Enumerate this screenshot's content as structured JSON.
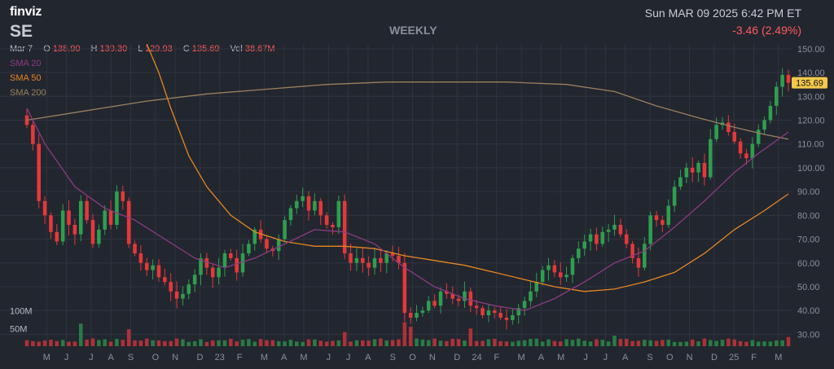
{
  "header": {
    "brand": "finviz",
    "ticker": "SE",
    "period": "WEEKLY",
    "datetime": "Sun MAR 09 2025 6:42 PM ET",
    "change": "-3.46 (2.49%)"
  },
  "ohlc": {
    "date": "Mar 7",
    "open_label": "O",
    "open": "138.90",
    "high_label": "H",
    "high": "139.30",
    "low_label": "L",
    "low": "129.93",
    "close_label": "C",
    "close": "135.69",
    "vol_label": "Vol",
    "vol": "38.67M"
  },
  "legend": {
    "sma20": "SMA 20",
    "sma50": "SMA 50",
    "sma200": "SMA 200"
  },
  "colors": {
    "background": "#22262f",
    "up": "#2e9e4f",
    "down": "#e5383b",
    "sma20": "#8e3b82",
    "sma50": "#e8861f",
    "sma200": "#9a8060",
    "price_tag": "#f2c94c",
    "grid": "#2f3440"
  },
  "chart_data": {
    "type": "candlestick",
    "ylim": [
      25,
      152
    ],
    "y_ticks": [
      "30.00",
      "40.00",
      "50.00",
      "60.00",
      "70.00",
      "80.00",
      "90.00",
      "100.00",
      "110.00",
      "120.00",
      "130.00",
      "140.00",
      "150.00"
    ],
    "y_tick_values": [
      30,
      40,
      50,
      60,
      70,
      80,
      90,
      100,
      110,
      120,
      130,
      140,
      150
    ],
    "last_price": "135.69",
    "x_ticks": [
      "M",
      "J",
      "J",
      "A",
      "S",
      "O",
      "N",
      "D",
      "23",
      "F",
      "M",
      "A",
      "M",
      "J",
      "J",
      "A",
      "S",
      "O",
      "N",
      "D",
      "24",
      "F",
      "M",
      "A",
      "M",
      "J",
      "J",
      "A",
      "S",
      "O",
      "N",
      "D",
      "25",
      "F",
      "M"
    ],
    "x_tick_week_index": [
      4,
      8,
      13,
      17,
      21,
      26,
      30,
      35,
      39,
      43,
      48,
      52,
      56,
      61,
      65,
      69,
      74,
      78,
      82,
      87,
      91,
      95,
      100,
      104,
      108,
      113,
      117,
      121,
      126,
      130,
      134,
      139,
      143,
      147,
      152
    ],
    "volume_labels": [
      "100M",
      "50M"
    ],
    "volume_label_values": [
      100,
      50
    ],
    "volume_max": 150,
    "price_anchors": [
      [
        0,
        118
      ],
      [
        1,
        110
      ],
      [
        2,
        86
      ],
      [
        3,
        80
      ],
      [
        4,
        73
      ],
      [
        5,
        69
      ],
      [
        6,
        82
      ],
      [
        7,
        76
      ],
      [
        8,
        72
      ],
      [
        9,
        86
      ],
      [
        10,
        78
      ],
      [
        11,
        68
      ],
      [
        12,
        74
      ],
      [
        13,
        82
      ],
      [
        14,
        76
      ],
      [
        15,
        90
      ],
      [
        16,
        86
      ],
      [
        17,
        68
      ],
      [
        18,
        64
      ],
      [
        19,
        60
      ],
      [
        20,
        57
      ],
      [
        21,
        59
      ],
      [
        22,
        54
      ],
      [
        23,
        52
      ],
      [
        24,
        48
      ],
      [
        25,
        45
      ],
      [
        26,
        47
      ],
      [
        27,
        51
      ],
      [
        28,
        55
      ],
      [
        29,
        62
      ],
      [
        30,
        58
      ],
      [
        31,
        54
      ],
      [
        32,
        58
      ],
      [
        33,
        64
      ],
      [
        34,
        62
      ],
      [
        35,
        56
      ],
      [
        36,
        64
      ],
      [
        37,
        68
      ],
      [
        38,
        74
      ],
      [
        39,
        70
      ],
      [
        40,
        66
      ],
      [
        41,
        65
      ],
      [
        42,
        70
      ],
      [
        43,
        78
      ],
      [
        44,
        83
      ],
      [
        45,
        86
      ],
      [
        46,
        88
      ],
      [
        47,
        82
      ],
      [
        48,
        86
      ],
      [
        49,
        80
      ],
      [
        50,
        76
      ],
      [
        51,
        75
      ],
      [
        52,
        86
      ],
      [
        53,
        64
      ],
      [
        54,
        60
      ],
      [
        55,
        62
      ],
      [
        56,
        60
      ],
      [
        57,
        58
      ],
      [
        58,
        62
      ],
      [
        59,
        60
      ],
      [
        60,
        64
      ],
      [
        61,
        63
      ],
      [
        62,
        60
      ],
      [
        63,
        39
      ],
      [
        64,
        37
      ],
      [
        65,
        39
      ],
      [
        66,
        40
      ],
      [
        67,
        44
      ],
      [
        68,
        42
      ],
      [
        69,
        48
      ],
      [
        70,
        47
      ],
      [
        71,
        45
      ],
      [
        72,
        44
      ],
      [
        73,
        48
      ],
      [
        74,
        42
      ],
      [
        75,
        41
      ],
      [
        76,
        38
      ],
      [
        77,
        40
      ],
      [
        78,
        39
      ],
      [
        79,
        37
      ],
      [
        80,
        36
      ],
      [
        81,
        38
      ],
      [
        82,
        41
      ],
      [
        83,
        44
      ],
      [
        84,
        48
      ],
      [
        85,
        52
      ],
      [
        86,
        57
      ],
      [
        87,
        59
      ],
      [
        88,
        56
      ],
      [
        89,
        54
      ],
      [
        90,
        55
      ],
      [
        91,
        62
      ],
      [
        92,
        66
      ],
      [
        93,
        69
      ],
      [
        94,
        72
      ],
      [
        95,
        68
      ],
      [
        96,
        73
      ],
      [
        97,
        74
      ],
      [
        98,
        76
      ],
      [
        99,
        72
      ],
      [
        100,
        68
      ],
      [
        101,
        62
      ],
      [
        102,
        58
      ],
      [
        103,
        68
      ],
      [
        104,
        80
      ],
      [
        105,
        78
      ],
      [
        106,
        76
      ],
      [
        107,
        84
      ],
      [
        108,
        92
      ],
      [
        109,
        96
      ],
      [
        110,
        100
      ],
      [
        111,
        98
      ],
      [
        112,
        102
      ],
      [
        113,
        96
      ],
      [
        114,
        112
      ],
      [
        115,
        118
      ],
      [
        116,
        119
      ],
      [
        117,
        115
      ],
      [
        118,
        111
      ],
      [
        119,
        106
      ],
      [
        120,
        104
      ],
      [
        121,
        110
      ],
      [
        122,
        116
      ],
      [
        123,
        120
      ],
      [
        124,
        126
      ],
      [
        125,
        134
      ],
      [
        126,
        139
      ],
      [
        127,
        135.69
      ]
    ],
    "sma20_anchors": [
      [
        0,
        125
      ],
      [
        3,
        110
      ],
      [
        8,
        92
      ],
      [
        13,
        83
      ],
      [
        18,
        78
      ],
      [
        23,
        70
      ],
      [
        28,
        62
      ],
      [
        33,
        58
      ],
      [
        38,
        62
      ],
      [
        43,
        68
      ],
      [
        48,
        74
      ],
      [
        53,
        73
      ],
      [
        58,
        68
      ],
      [
        63,
        58
      ],
      [
        68,
        50
      ],
      [
        73,
        45
      ],
      [
        78,
        42
      ],
      [
        83,
        40
      ],
      [
        88,
        45
      ],
      [
        93,
        52
      ],
      [
        98,
        60
      ],
      [
        103,
        65
      ],
      [
        108,
        75
      ],
      [
        113,
        86
      ],
      [
        118,
        98
      ],
      [
        122,
        106
      ],
      [
        127,
        115
      ]
    ],
    "sma50_anchors": [
      [
        20,
        152
      ],
      [
        22,
        140
      ],
      [
        24,
        125
      ],
      [
        27,
        105
      ],
      [
        30,
        92
      ],
      [
        34,
        80
      ],
      [
        38,
        73
      ],
      [
        43,
        69
      ],
      [
        48,
        67
      ],
      [
        53,
        67
      ],
      [
        58,
        66
      ],
      [
        63,
        63
      ],
      [
        68,
        61
      ],
      [
        73,
        59
      ],
      [
        78,
        56
      ],
      [
        83,
        53
      ],
      [
        88,
        50
      ],
      [
        93,
        48
      ],
      [
        98,
        49
      ],
      [
        103,
        52
      ],
      [
        108,
        56
      ],
      [
        113,
        64
      ],
      [
        118,
        74
      ],
      [
        123,
        82
      ],
      [
        127,
        89
      ]
    ],
    "sma200_anchors": [
      [
        0,
        120
      ],
      [
        10,
        124
      ],
      [
        20,
        128
      ],
      [
        30,
        131
      ],
      [
        40,
        133
      ],
      [
        50,
        135
      ],
      [
        60,
        136
      ],
      [
        70,
        136
      ],
      [
        80,
        136
      ],
      [
        90,
        135
      ],
      [
        98,
        132
      ],
      [
        105,
        126
      ],
      [
        112,
        121
      ],
      [
        118,
        117
      ],
      [
        123,
        114
      ],
      [
        127,
        112
      ]
    ]
  }
}
